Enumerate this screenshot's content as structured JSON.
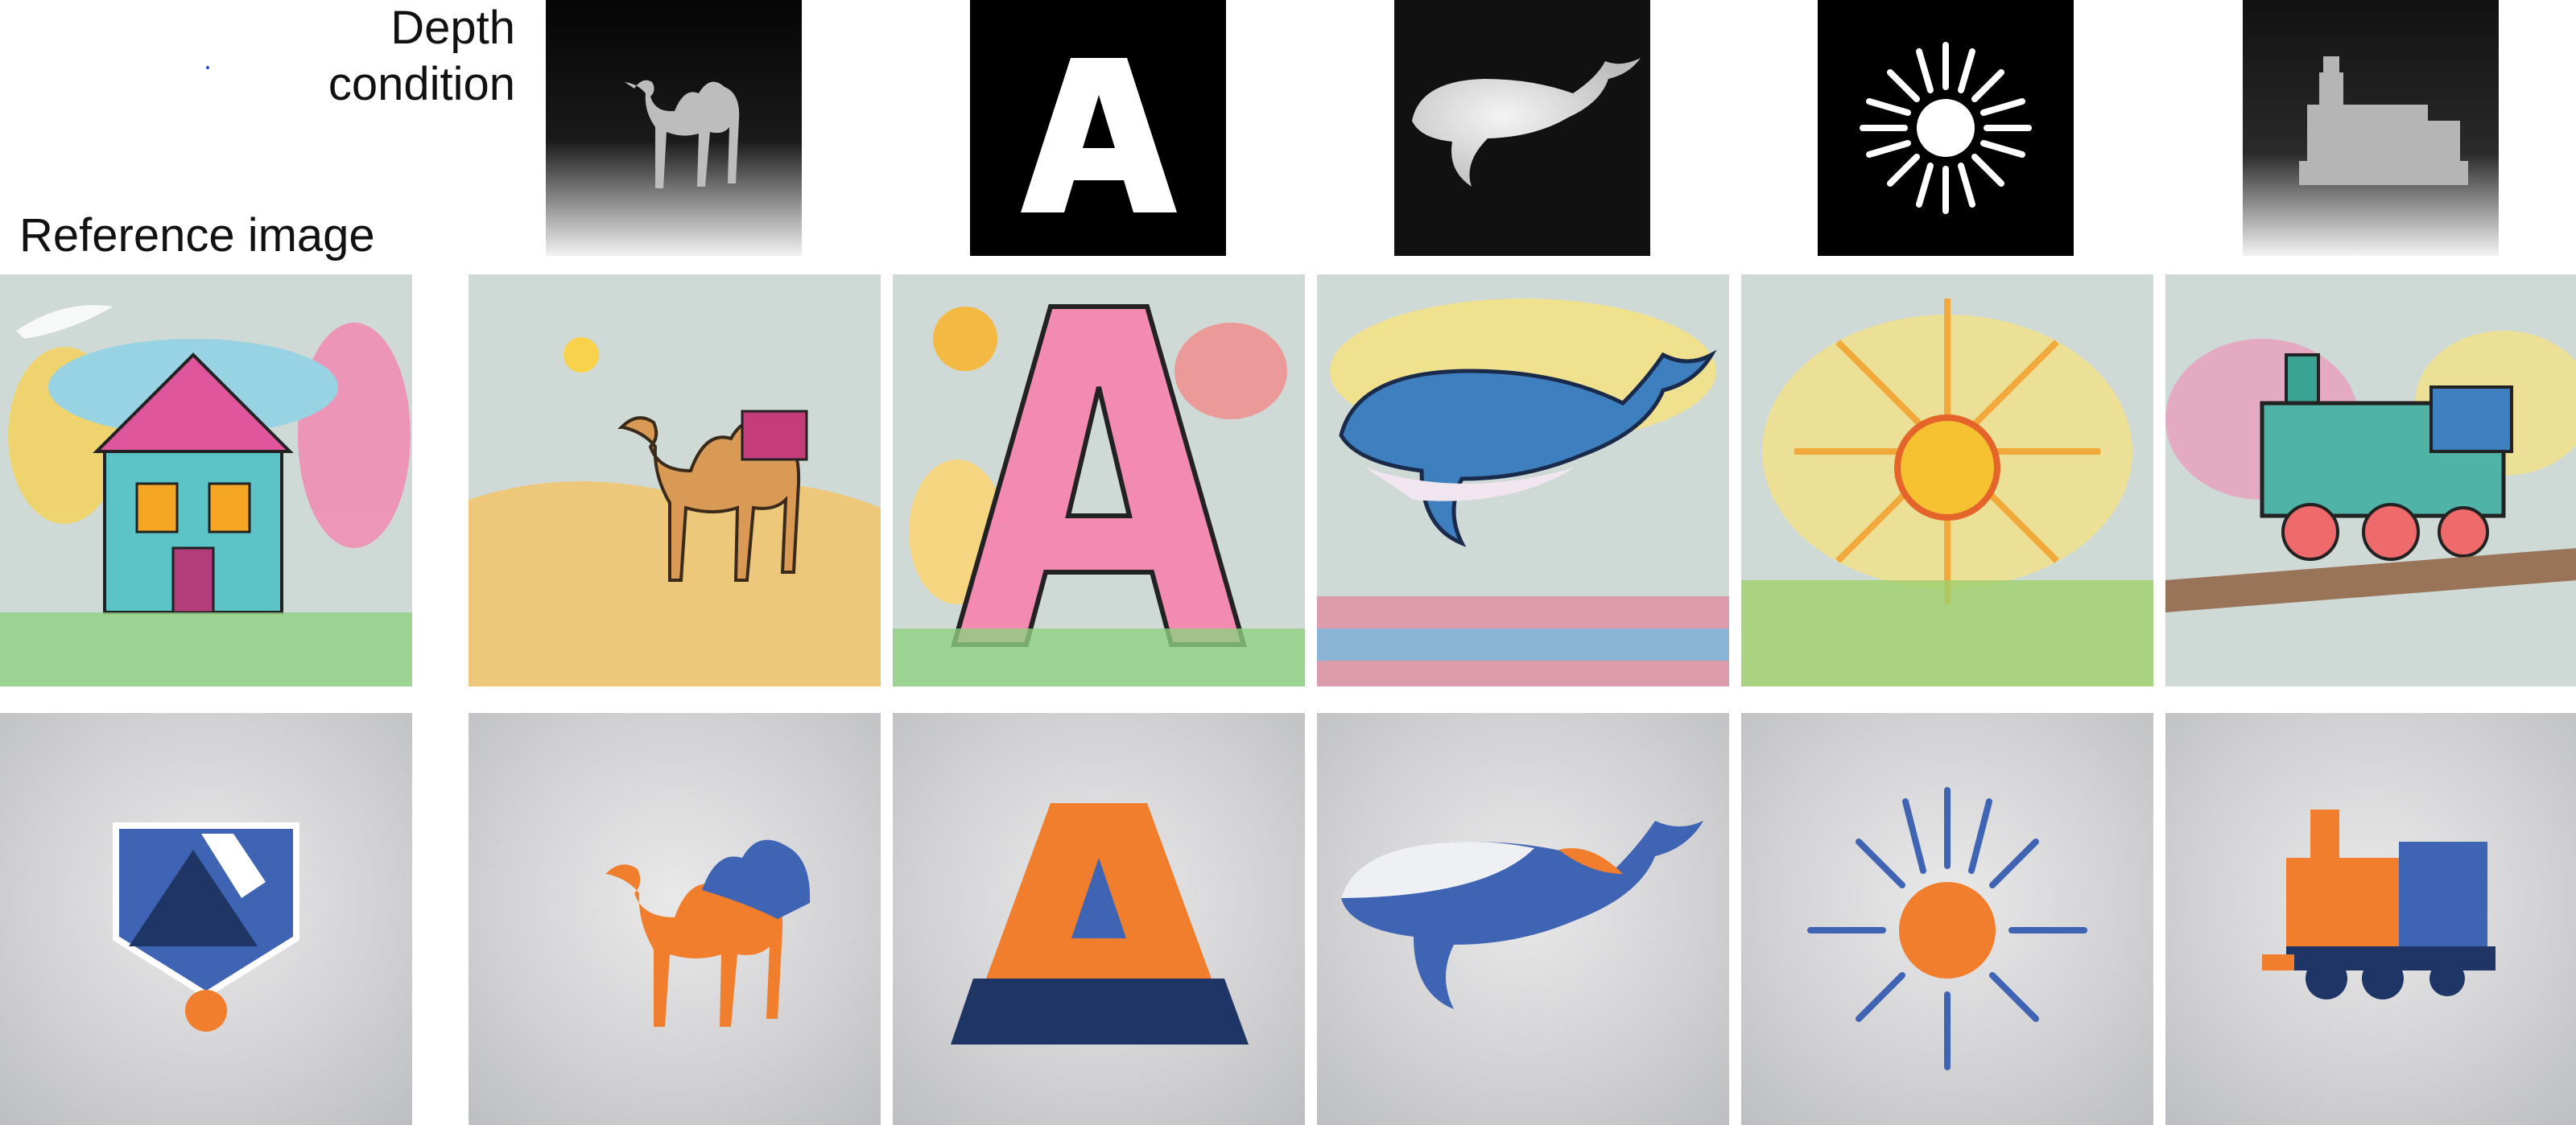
{
  "labels": {
    "depth_condition_line1": "Depth",
    "depth_condition_line2": "condition",
    "reference_image": "Reference image"
  },
  "reference": {
    "sketch_subject": "house",
    "logo_subject": "abstract logo"
  },
  "columns": [
    {
      "subject": "camel",
      "condition": "depth map"
    },
    {
      "subject": "letter A",
      "condition": "letter A"
    },
    {
      "subject": "whale",
      "condition": "depth map"
    },
    {
      "subject": "sun",
      "condition": "sun icon"
    },
    {
      "subject": "train",
      "condition": "depth map"
    }
  ],
  "colors": {
    "logo_orange": "#f07e2c",
    "logo_blue": "#3f64b4",
    "logo_navy": "#1f3566",
    "sketch_bg": "#cfd9d6"
  }
}
